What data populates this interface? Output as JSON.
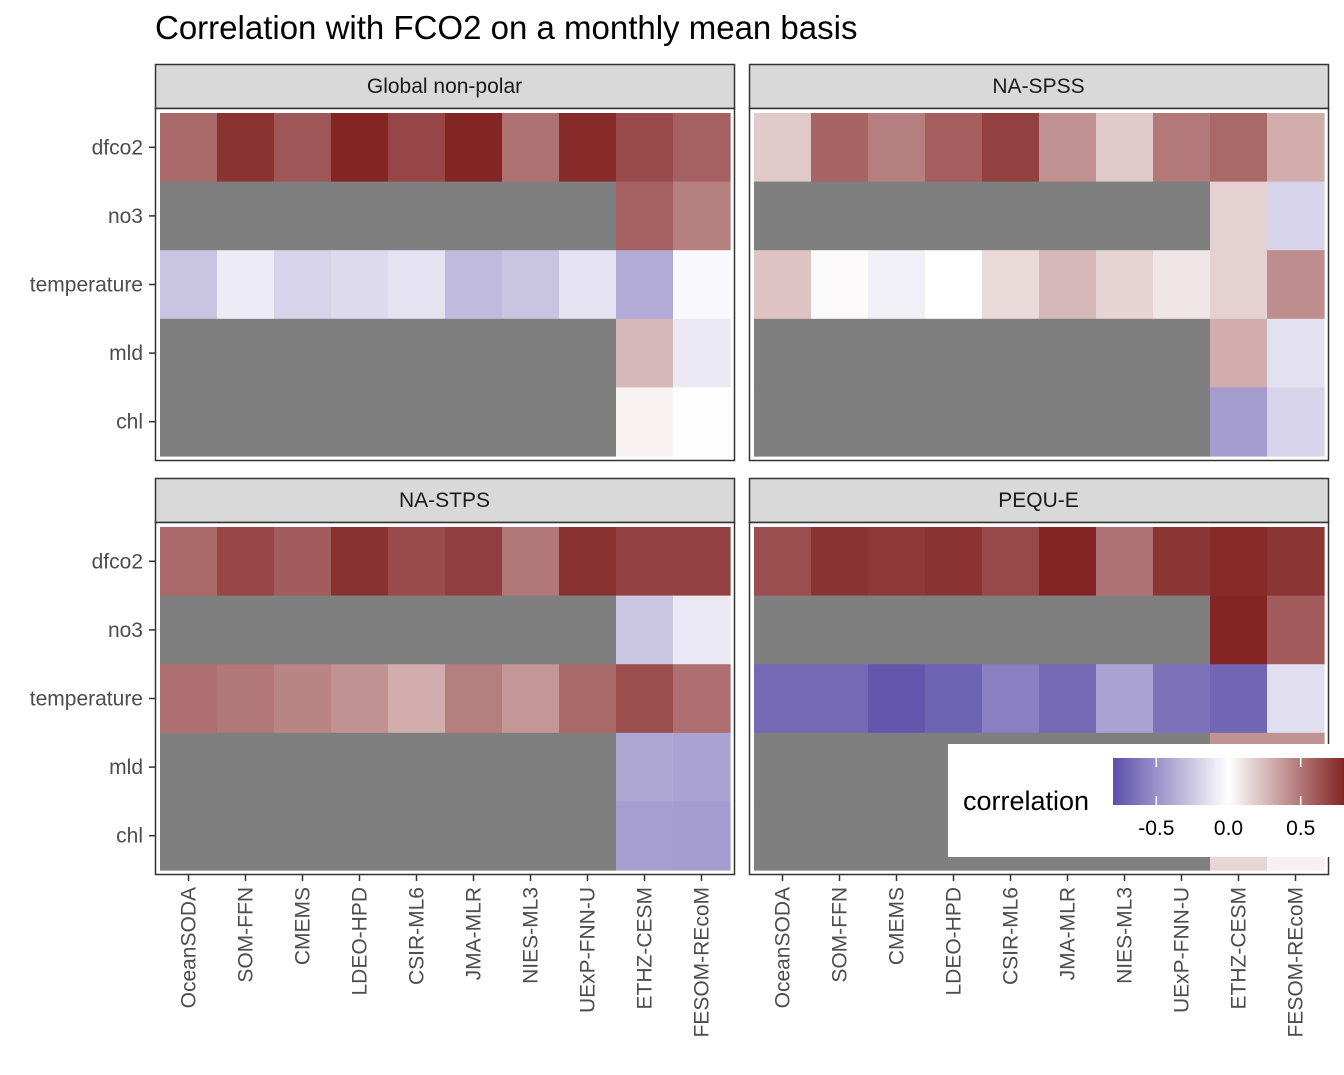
{
  "chart_data": {
    "type": "heatmap",
    "title": "Correlation with FCO2 on a monthly mean basis",
    "x_categories": [
      "OceanSODA",
      "SOM-FFN",
      "CMEMS",
      "LDEO-HPD",
      "CSIR-ML6",
      "JMA-MLR",
      "NIES-ML3",
      "UExP-FNN-U",
      "ETHZ-CESM",
      "FESOM-REcoM"
    ],
    "y_categories": [
      "dfco2",
      "no3",
      "temperature",
      "mld",
      "chl"
    ],
    "legend": {
      "title": "correlation",
      "placement": "bottom-right",
      "range": [
        -0.8,
        0.8
      ],
      "breaks": [
        -0.5,
        0.0,
        0.5
      ],
      "break_labels": [
        "-0.5",
        "0.0",
        "0.5"
      ],
      "low_color": "#5d4fa9",
      "mid_color": "#ffffff",
      "high_color": "#832525",
      "na_color": "#7f7f7f"
    },
    "panels": [
      {
        "name": "Global non-polar",
        "values": {
          "dfco2": [
            0.55,
            0.75,
            0.62,
            0.8,
            0.68,
            0.81,
            0.52,
            0.78,
            0.66,
            0.58
          ],
          "no3": [
            null,
            null,
            null,
            null,
            null,
            null,
            null,
            null,
            0.58,
            0.47
          ],
          "temperature": [
            -0.27,
            -0.09,
            -0.2,
            -0.17,
            -0.13,
            -0.31,
            -0.27,
            -0.13,
            -0.38,
            -0.03
          ],
          "mld": [
            null,
            null,
            null,
            null,
            null,
            null,
            null,
            null,
            0.26,
            -0.1
          ],
          "chl": [
            null,
            null,
            null,
            null,
            null,
            null,
            null,
            null,
            0.05,
            -0.01
          ]
        }
      },
      {
        "name": "NA-SPSS",
        "values": {
          "dfco2": [
            0.2,
            0.57,
            0.47,
            0.59,
            0.7,
            0.4,
            0.2,
            0.49,
            0.55,
            0.3
          ],
          "no3": [
            null,
            null,
            null,
            null,
            null,
            null,
            null,
            null,
            0.17,
            -0.2
          ],
          "temperature": [
            0.22,
            0.02,
            -0.07,
            0.0,
            0.14,
            0.26,
            0.16,
            0.09,
            0.17,
            0.42
          ],
          "mld": [
            null,
            null,
            null,
            null,
            null,
            null,
            null,
            null,
            0.3,
            -0.14
          ],
          "chl": [
            null,
            null,
            null,
            null,
            null,
            null,
            null,
            null,
            -0.45,
            -0.2
          ]
        }
      },
      {
        "name": "NA-STPS",
        "values": {
          "dfco2": [
            0.55,
            0.68,
            0.6,
            0.76,
            0.66,
            0.71,
            0.5,
            0.76,
            0.7,
            0.7
          ],
          "no3": [
            null,
            null,
            null,
            null,
            null,
            null,
            null,
            null,
            -0.25,
            -0.1
          ],
          "temperature": [
            0.53,
            0.5,
            0.45,
            0.4,
            0.3,
            0.47,
            0.38,
            0.55,
            0.65,
            0.53
          ],
          "mld": [
            null,
            null,
            null,
            null,
            null,
            null,
            null,
            null,
            -0.4,
            -0.42
          ],
          "chl": [
            null,
            null,
            null,
            null,
            null,
            null,
            null,
            null,
            -0.44,
            -0.45
          ]
        }
      },
      {
        "name": "PEQU-E",
        "values": {
          "dfco2": [
            0.65,
            0.75,
            0.73,
            0.75,
            0.67,
            0.8,
            0.52,
            0.74,
            0.78,
            0.74
          ],
          "no3": [
            null,
            null,
            null,
            null,
            null,
            null,
            null,
            null,
            0.8,
            0.6
          ],
          "temperature": [
            -0.68,
            -0.68,
            -0.77,
            -0.71,
            -0.58,
            -0.68,
            -0.42,
            -0.64,
            -0.7,
            -0.15
          ],
          "mld": [
            null,
            null,
            null,
            null,
            null,
            null,
            null,
            null,
            0.4,
            0.4
          ],
          "chl": [
            null,
            null,
            null,
            null,
            null,
            null,
            null,
            null,
            0.15,
            0.05
          ]
        }
      }
    ]
  }
}
